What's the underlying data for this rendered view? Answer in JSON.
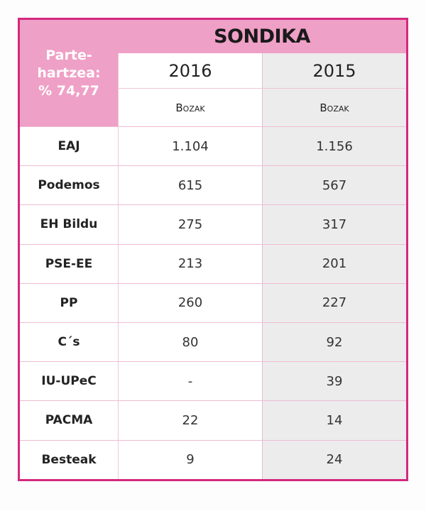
{
  "participation": {
    "line1": "Parte-",
    "line2": "hartzea:",
    "line3": "% 74,77"
  },
  "title": "SONDIKA",
  "columns": [
    {
      "year": "2016",
      "sub": "Bozak"
    },
    {
      "year": "2015",
      "sub": "Bozak"
    }
  ],
  "rows": [
    {
      "party": "EAJ",
      "v2016": "1.104",
      "v2015": "1.156"
    },
    {
      "party": "Podemos",
      "v2016": "615",
      "v2015": "567"
    },
    {
      "party": "EH Bildu",
      "v2016": "275",
      "v2015": "317"
    },
    {
      "party": "PSE-EE",
      "v2016": "213",
      "v2015": "201"
    },
    {
      "party": "PP",
      "v2016": "260",
      "v2015": "227"
    },
    {
      "party": "C´s",
      "v2016": "80",
      "v2015": "92"
    },
    {
      "party": "IU-UPeC",
      "v2016": "-",
      "v2015": "39"
    },
    {
      "party": "PACMA",
      "v2016": "22",
      "v2015": "14"
    },
    {
      "party": "Besteak",
      "v2016": "9",
      "v2015": "24"
    }
  ],
  "colors": {
    "border": "#d3297f",
    "header": "#efa0c6",
    "shade": "#ececec"
  }
}
